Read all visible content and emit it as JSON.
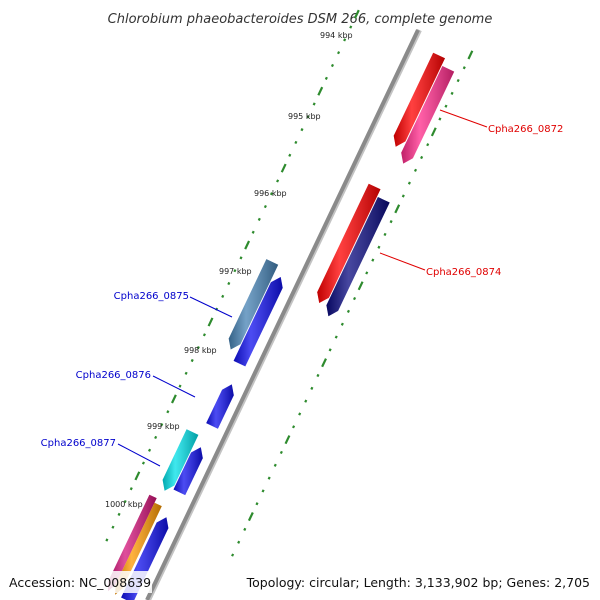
{
  "title": "Chlorobium phaeobacteroides DSM 266, complete genome",
  "footer": {
    "accession": "Accession: NC_008639",
    "summary": "Topology: circular; Length: 3,133,902 bp; Genes: 2,705"
  },
  "ticks": [
    {
      "label": "994 kbp"
    },
    {
      "label": "995 kbp"
    },
    {
      "label": "996 kbp"
    },
    {
      "label": "997 kbp"
    },
    {
      "label": "998 kbp"
    },
    {
      "label": "999 kbp"
    },
    {
      "label": "1000 kbp"
    }
  ],
  "gene_labels": [
    {
      "name": "Cpha266_0872",
      "color": "#e00000"
    },
    {
      "name": "Cpha266_0874",
      "color": "#e00000"
    },
    {
      "name": "Cpha266_0875",
      "color": "#0000cc"
    },
    {
      "name": "Cpha266_0876",
      "color": "#0000cc"
    },
    {
      "name": "Cpha266_0877",
      "color": "#0000cc"
    }
  ],
  "colors": {
    "backbone": "#8a8a8a",
    "tick": "#2e8b2e",
    "red_gene": "#ff0000",
    "pink_gene": "#ff2a8a",
    "navy_gene": "#0a0a80",
    "blue_gene": "#1010ee",
    "steel_gene": "#4682b4",
    "cyan_gene": "#00e0e8",
    "orange_gene": "#ff9900",
    "magenta_gene": "#d4147a"
  }
}
